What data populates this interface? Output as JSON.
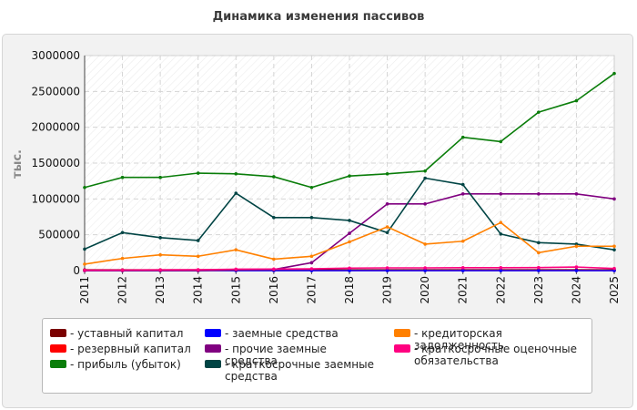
{
  "chart_data": {
    "type": "line",
    "title": "Динамика изменения пассивов",
    "ylabel": "тыс.",
    "xlabel": "",
    "x": [
      "2011",
      "2012",
      "2013",
      "2014",
      "2015",
      "2016",
      "2017",
      "2018",
      "2019",
      "2020",
      "2021",
      "2022",
      "2023",
      "2024",
      "2025"
    ],
    "ylim": [
      0,
      3000000
    ],
    "yticks": [
      0,
      500000,
      1000000,
      1500000,
      2000000,
      2500000,
      3000000
    ],
    "ytick_labels": [
      "0",
      "500000",
      "1000000",
      "1500000",
      "2000000",
      "2500000",
      "3000000"
    ],
    "grid": true,
    "legend_position": "bottom",
    "series": [
      {
        "name": "- уставный капитал",
        "color": "#7a0000",
        "values": [
          10000,
          10000,
          10000,
          10000,
          10000,
          10000,
          10000,
          10000,
          10000,
          10000,
          10000,
          10000,
          10000,
          10000,
          10000
        ]
      },
      {
        "name": "- резервный капитал",
        "color": "#ff0000",
        "values": [
          2000,
          2000,
          2000,
          2000,
          2000,
          2000,
          2000,
          2000,
          2000,
          2000,
          2000,
          2000,
          2000,
          2000,
          2000
        ]
      },
      {
        "name": "- прибыль (убыток)",
        "color": "#0a7d0a",
        "values": [
          1160000,
          1300000,
          1300000,
          1360000,
          1350000,
          1310000,
          1160000,
          1320000,
          1350000,
          1390000,
          1860000,
          1800000,
          2210000,
          2370000,
          2750000
        ]
      },
      {
        "name": "- заемные средства",
        "color": "#0000ff",
        "values": [
          0,
          0,
          0,
          0,
          0,
          0,
          0,
          0,
          0,
          0,
          0,
          0,
          0,
          0,
          0
        ]
      },
      {
        "name": "- прочие заемные средства",
        "color": "#800080",
        "values": [
          0,
          0,
          0,
          0,
          10000,
          15000,
          110000,
          520000,
          930000,
          930000,
          1070000,
          1070000,
          1070000,
          1070000,
          1000000
        ]
      },
      {
        "name": "- краткосрочные заемные средства",
        "color": "#004444",
        "values": [
          300000,
          530000,
          460000,
          420000,
          1080000,
          740000,
          740000,
          700000,
          530000,
          1290000,
          1200000,
          510000,
          390000,
          370000,
          290000
        ]
      },
      {
        "name": "- кредиторская задолженность",
        "color": "#ff8000",
        "values": [
          90000,
          170000,
          220000,
          200000,
          290000,
          160000,
          200000,
          400000,
          610000,
          370000,
          410000,
          670000,
          250000,
          340000,
          340000
        ]
      },
      {
        "name": "- краткосрочные оценочные обязательства",
        "color": "#ff0080",
        "values": [
          5000,
          8000,
          10000,
          12000,
          20000,
          22000,
          25000,
          35000,
          38000,
          38000,
          40000,
          40000,
          42000,
          50000,
          30000
        ]
      }
    ]
  }
}
